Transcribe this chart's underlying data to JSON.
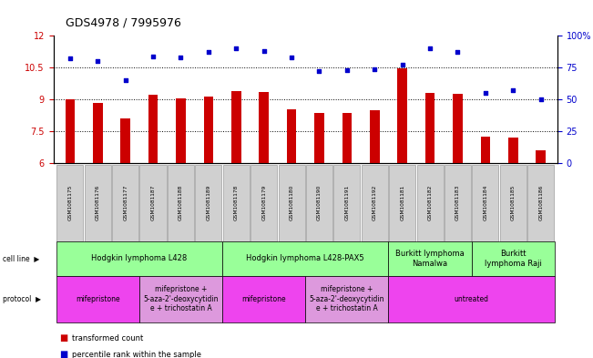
{
  "title": "GDS4978 / 7995976",
  "samples": [
    "GSM1081175",
    "GSM1081176",
    "GSM1081177",
    "GSM1081187",
    "GSM1081188",
    "GSM1081189",
    "GSM1081178",
    "GSM1081179",
    "GSM1081180",
    "GSM1081190",
    "GSM1081191",
    "GSM1081192",
    "GSM1081181",
    "GSM1081182",
    "GSM1081183",
    "GSM1081184",
    "GSM1081185",
    "GSM1081186"
  ],
  "bar_values": [
    9.0,
    8.85,
    8.1,
    9.2,
    9.05,
    9.15,
    9.4,
    9.35,
    8.55,
    8.35,
    8.35,
    8.5,
    10.45,
    9.3,
    9.25,
    7.25,
    7.2,
    6.6
  ],
  "dot_values": [
    82,
    80,
    65,
    84,
    83,
    87,
    90,
    88,
    83,
    72,
    73,
    74,
    77,
    90,
    87,
    55,
    57,
    50
  ],
  "ylim": [
    6,
    12
  ],
  "yticks_left": [
    6,
    7.5,
    9,
    10.5,
    12
  ],
  "yticks_right": [
    0,
    25,
    50,
    75,
    100
  ],
  "bar_color": "#cc0000",
  "dot_color": "#0000cc",
  "xtick_bg": "#d0d0d0",
  "cell_line_color": "#99ff99",
  "protocol_mife_color": "#ee44ee",
  "protocol_combo_color": "#dd99dd",
  "protocol_untreated_color": "#ee44ee",
  "cell_line_groups": [
    {
      "label": "Hodgkin lymphoma L428",
      "start": 0,
      "end": 5
    },
    {
      "label": "Hodgkin lymphoma L428-PAX5",
      "start": 6,
      "end": 11
    },
    {
      "label": "Burkitt lymphoma\nNamalwa",
      "start": 12,
      "end": 14
    },
    {
      "label": "Burkitt\nlymphoma Raji",
      "start": 15,
      "end": 17
    }
  ],
  "protocol_groups": [
    {
      "label": "mifepristone",
      "start": 0,
      "end": 2,
      "type": "mife"
    },
    {
      "label": "mifepristone +\n5-aza-2'-deoxycytidin\ne + trichostatin A",
      "start": 3,
      "end": 5,
      "type": "combo"
    },
    {
      "label": "mifepristone",
      "start": 6,
      "end": 8,
      "type": "mife"
    },
    {
      "label": "mifepristone +\n5-aza-2'-deoxycytidin\ne + trichostatin A",
      "start": 9,
      "end": 11,
      "type": "combo"
    },
    {
      "label": "untreated",
      "start": 12,
      "end": 17,
      "type": "untreated"
    }
  ],
  "title_fontsize": 9,
  "tick_fontsize": 7,
  "label_fontsize": 6,
  "table_fontsize": 6
}
